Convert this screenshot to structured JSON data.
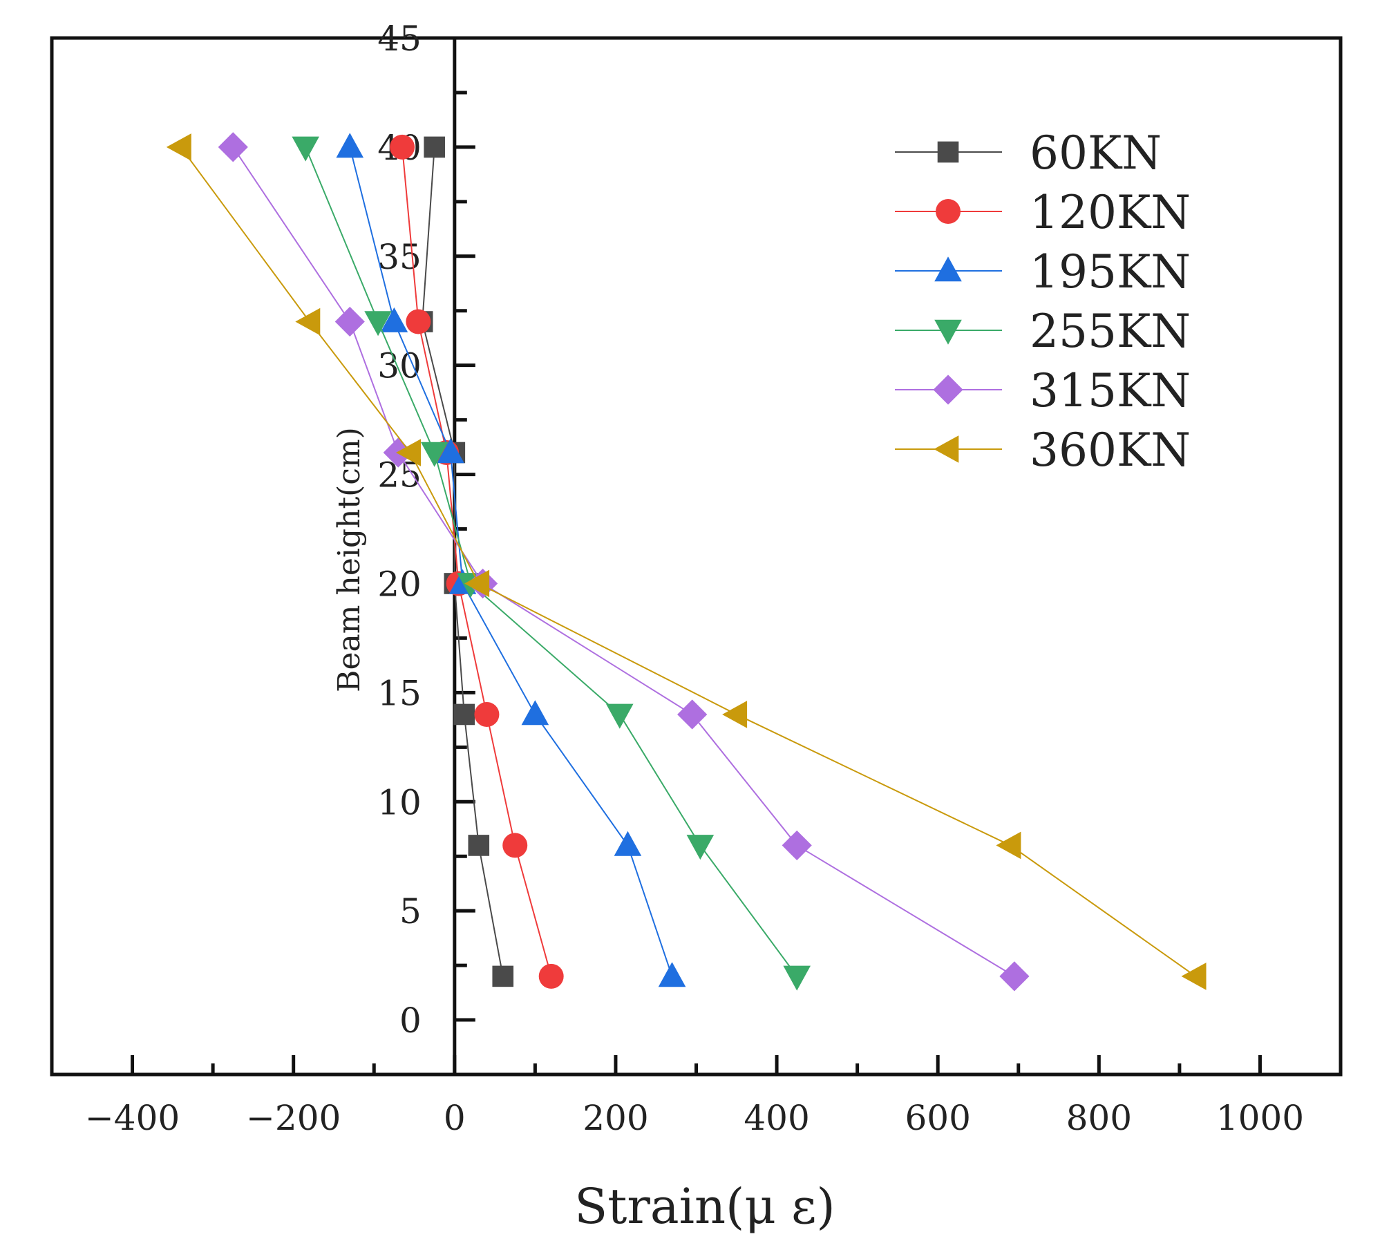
{
  "chart_data": {
    "type": "line",
    "xlabel": "Strain(μ ε)",
    "ylabel": "Beam height(cm)",
    "xlim": [
      -500,
      1100
    ],
    "ylim": [
      -2.5,
      45
    ],
    "x_ticks": [
      -400,
      -200,
      0,
      200,
      400,
      600,
      800,
      1000
    ],
    "x_tick_labels": [
      "−400",
      "−200",
      "0",
      "200",
      "400",
      "600",
      "800",
      "1000"
    ],
    "y_ticks": [
      0,
      5,
      10,
      15,
      20,
      25,
      30,
      35,
      40,
      45
    ],
    "y_tick_labels": [
      "0",
      "5",
      "10",
      "15",
      "20",
      "25",
      "30",
      "35",
      "40",
      "45"
    ],
    "grid": false,
    "legend_position": "top-right",
    "y": [
      2,
      8,
      14,
      20,
      26,
      32,
      40
    ],
    "series": [
      {
        "name": "60KN",
        "color": "#4a4a4a",
        "marker": "square",
        "x": [
          60,
          30,
          12,
          0,
          0,
          -40,
          -25
        ]
      },
      {
        "name": "120KN",
        "color": "#ef3b3b",
        "marker": "circle",
        "x": [
          120,
          75,
          40,
          5,
          -10,
          -45,
          -65
        ]
      },
      {
        "name": "195KN",
        "color": "#1f6fe0",
        "marker": "triangle-up",
        "x": [
          270,
          215,
          100,
          10,
          -5,
          -75,
          -130
        ]
      },
      {
        "name": "255KN",
        "color": "#3aaa68",
        "marker": "triangle-down",
        "x": [
          425,
          305,
          205,
          20,
          -25,
          -95,
          -185
        ]
      },
      {
        "name": "315KN",
        "color": "#ae6fe0",
        "marker": "diamond",
        "x": [
          695,
          425,
          295,
          35,
          -70,
          -130,
          -275
        ]
      },
      {
        "name": "360KN",
        "color": "#c99a0c",
        "marker": "triangle-left",
        "x": [
          920,
          690,
          350,
          30,
          -55,
          -180,
          -340
        ]
      }
    ]
  }
}
